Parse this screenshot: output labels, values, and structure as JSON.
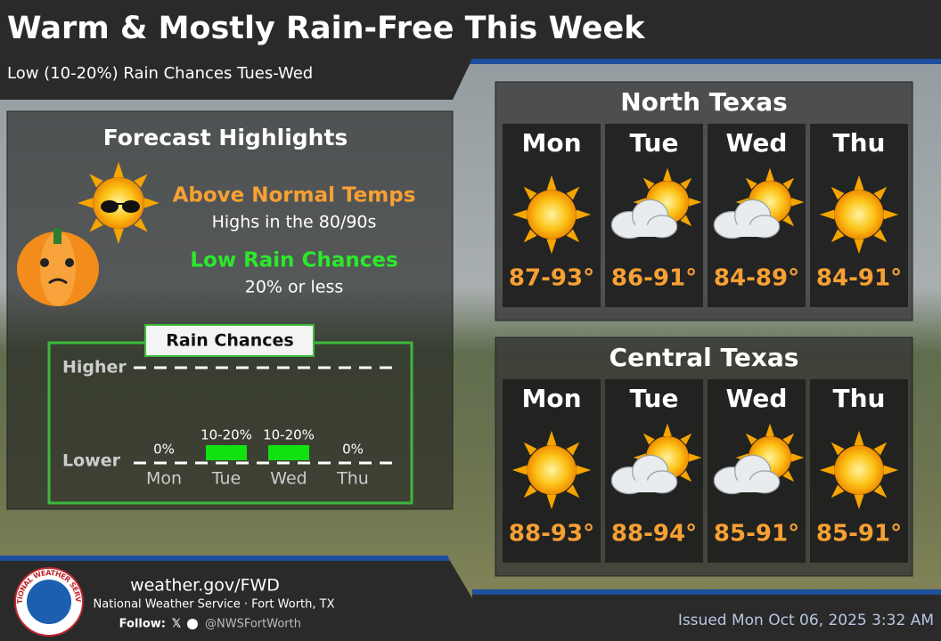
{
  "header": {
    "title": "Warm & Mostly Rain-Free This Week",
    "subtitle": "Low (10-20%) Rain Chances Tues-Wed"
  },
  "highlights": {
    "title": "Forecast Highlights",
    "items": [
      {
        "heading": "Above Normal Temps",
        "detail": "Highs in the 80/90s"
      },
      {
        "heading": "Low Rain Chances",
        "detail": "20% or less"
      }
    ]
  },
  "rain_chances": {
    "title": "Rain Chances",
    "levels": [
      "Higher",
      "Lower"
    ],
    "days": [
      {
        "day": "Mon",
        "label": "0%"
      },
      {
        "day": "Tue",
        "label": "10-20%"
      },
      {
        "day": "Wed",
        "label": "10-20%"
      },
      {
        "day": "Thu",
        "label": "0%"
      }
    ]
  },
  "regions": [
    {
      "name": "North Texas",
      "days": [
        {
          "day": "Mon",
          "temps": "87-93°"
        },
        {
          "day": "Tue",
          "temps": "86-91°"
        },
        {
          "day": "Wed",
          "temps": "84-89°"
        },
        {
          "day": "Thu",
          "temps": "84-91°"
        }
      ]
    },
    {
      "name": "Central Texas",
      "days": [
        {
          "day": "Mon",
          "temps": "88-93°"
        },
        {
          "day": "Tue",
          "temps": "88-94°"
        },
        {
          "day": "Wed",
          "temps": "85-91°"
        },
        {
          "day": "Thu",
          "temps": "85-91°"
        }
      ]
    }
  ],
  "footer": {
    "logo_text": "NATIONAL WEATHER SERVICE",
    "url": "weather.gov/FWD",
    "office": "National Weather Service · Fort Worth, TX",
    "follow": "Follow:",
    "handle": "@NWSFortWorth",
    "issued": "Issued Mon Oct 06, 2025 3:32 AM"
  }
}
